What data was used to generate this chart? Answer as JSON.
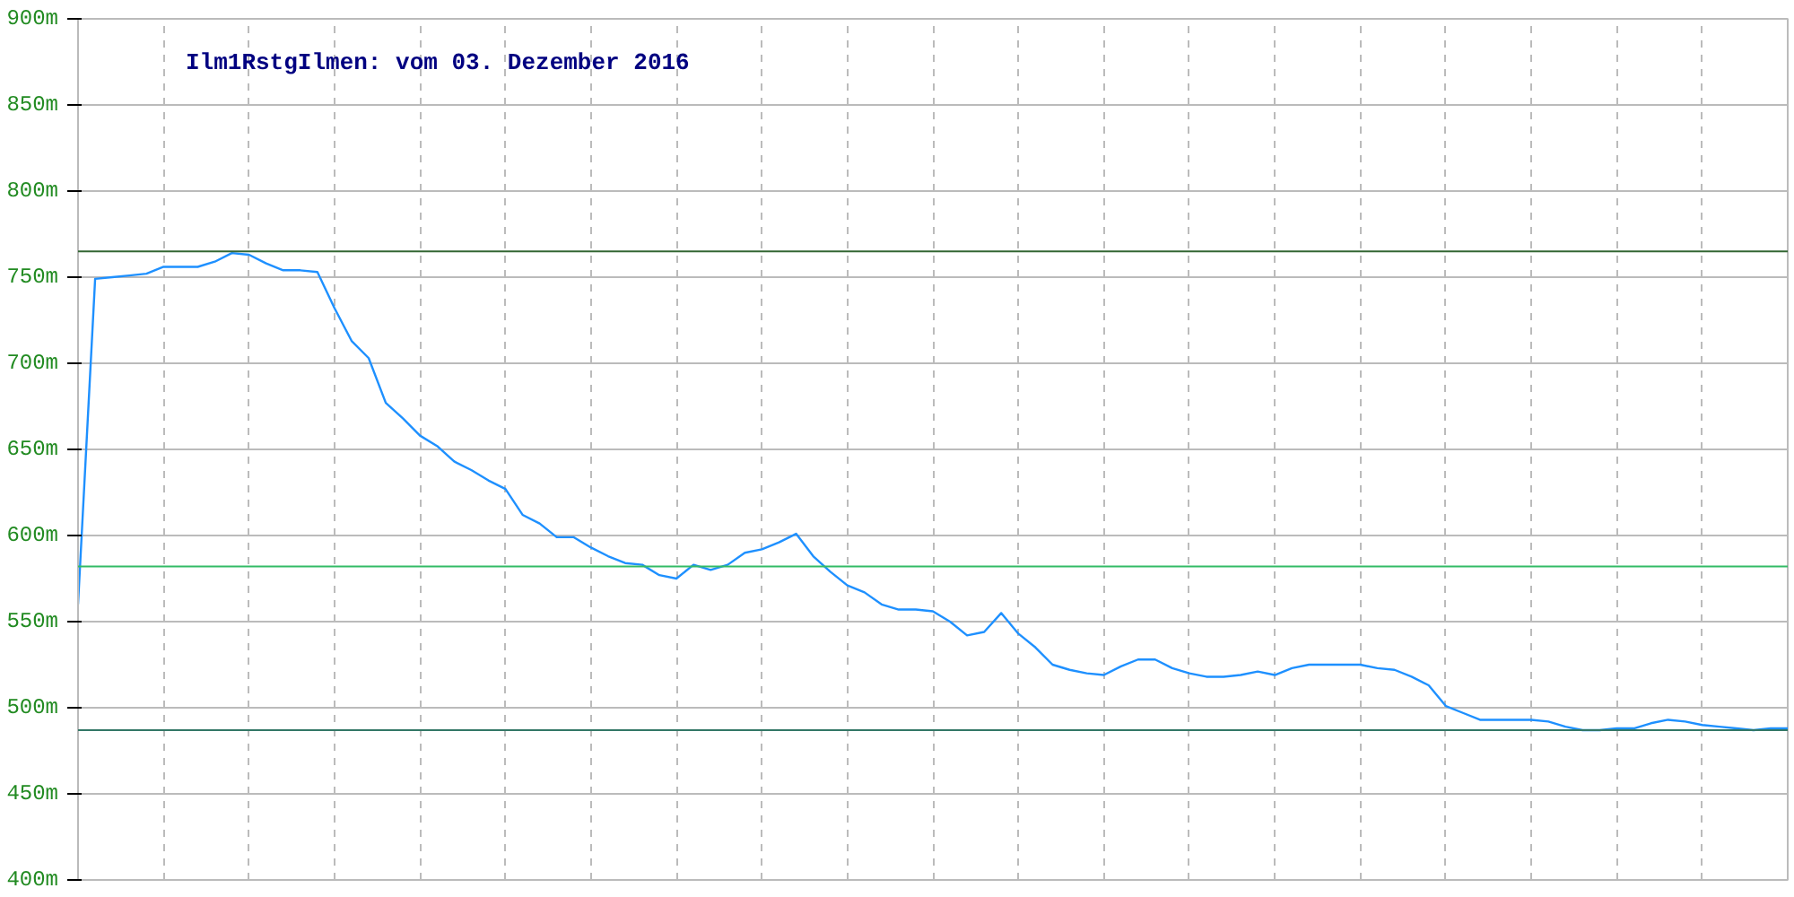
{
  "chart_data": {
    "type": "line",
    "title": "Ilm1RstgIlmen: vom 03. Dezember 2016",
    "categories": [
      null,
      null,
      null,
      null,
      null,
      null,
      null,
      null,
      null,
      null,
      null,
      null,
      null,
      null,
      null,
      null,
      null,
      null,
      null,
      null,
      null,
      null,
      null,
      null,
      null,
      null,
      null,
      null,
      null,
      null,
      null,
      null,
      null,
      null,
      null,
      null,
      null,
      null,
      null,
      null,
      null,
      null,
      null,
      null,
      null,
      null,
      null,
      null,
      null,
      null,
      null,
      null,
      null,
      null,
      null,
      null,
      null,
      null,
      null,
      null,
      null,
      null,
      null,
      null,
      null,
      null,
      null,
      null,
      null,
      null,
      null,
      null,
      null,
      null,
      null,
      null,
      null,
      null,
      null,
      null,
      null,
      null,
      null,
      null,
      null,
      null,
      null,
      null,
      null,
      null,
      null,
      null,
      null,
      null,
      null,
      null,
      null,
      null,
      null,
      null,
      null
    ],
    "series": [
      {
        "color": "#1e90ff",
        "values": [
          560,
          749,
          750,
          751,
          752,
          756,
          756,
          756,
          759,
          764,
          763,
          758,
          754,
          754,
          753,
          732,
          713,
          703,
          677,
          668,
          658,
          652,
          643,
          638,
          632,
          627,
          612,
          607,
          599,
          599,
          593,
          588,
          584,
          583,
          577,
          575,
          583,
          580,
          583,
          590,
          592,
          596,
          601,
          588,
          579,
          571,
          567,
          560,
          557,
          557,
          556,
          550,
          542,
          544,
          555,
          543,
          535,
          525,
          522,
          520,
          519,
          524,
          528,
          528,
          523,
          520,
          518,
          518,
          519,
          521,
          519,
          523,
          525,
          525,
          525,
          525,
          523,
          522,
          518,
          513,
          501,
          497,
          493,
          493,
          493,
          493,
          492,
          489,
          487,
          487,
          488,
          488,
          491,
          493,
          492,
          490,
          489,
          488,
          487,
          488,
          488
        ]
      }
    ],
    "ylim": [
      400,
      900
    ],
    "yticks": [
      {
        "value": 400,
        "label": "400m"
      },
      {
        "value": 450,
        "label": "450m"
      },
      {
        "value": 500,
        "label": "500m"
      },
      {
        "value": 550,
        "label": "550m"
      },
      {
        "value": 600,
        "label": "600m"
      },
      {
        "value": 650,
        "label": "650m"
      },
      {
        "value": 700,
        "label": "700m"
      },
      {
        "value": 750,
        "label": "750m"
      },
      {
        "value": 800,
        "label": "800m"
      },
      {
        "value": 850,
        "label": "850m"
      },
      {
        "value": 900,
        "label": "900m"
      }
    ],
    "tick_labels": "y",
    "grid": true,
    "marker": "none",
    "line_style": "solid",
    "ref_lines": [
      {
        "axis": "y",
        "value": 765,
        "color": "#336633"
      },
      {
        "axis": "y",
        "value": 582,
        "color": "#33bb66"
      },
      {
        "axis": "y",
        "value": 487,
        "color": "#337766"
      }
    ]
  }
}
